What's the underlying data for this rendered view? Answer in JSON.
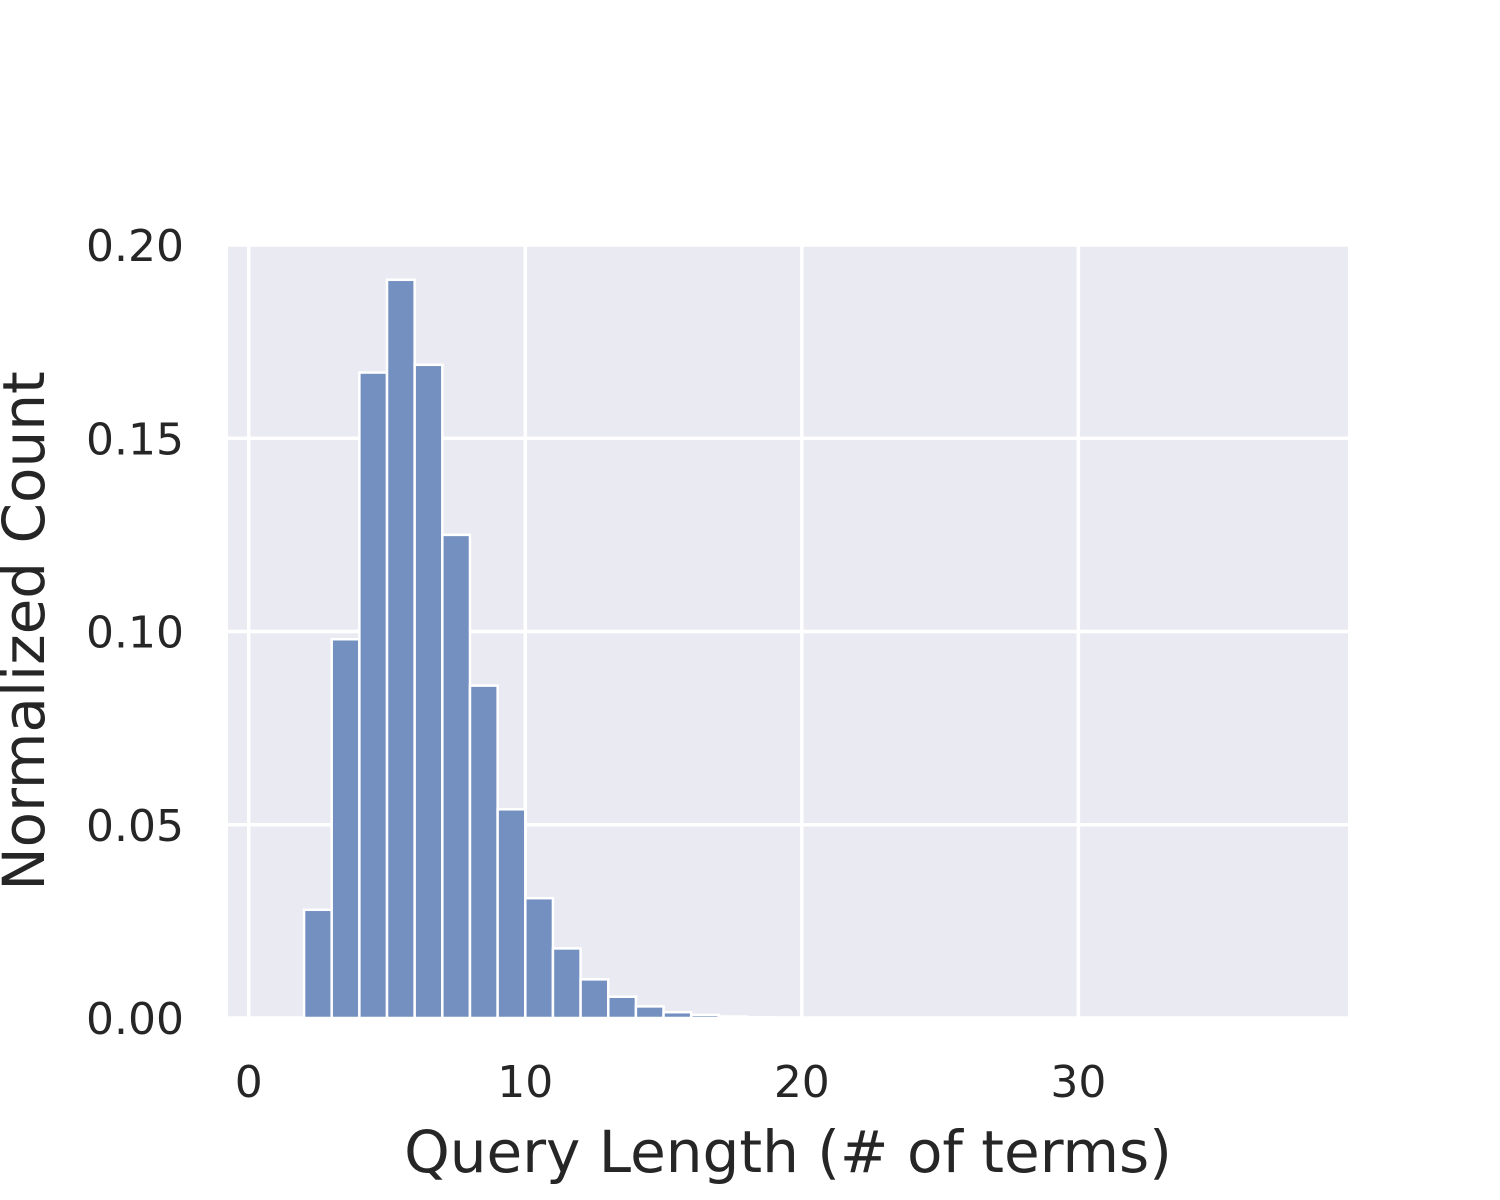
{
  "chart_data": {
    "type": "bar",
    "title": "",
    "xlabel": "Query Length (# of terms)",
    "ylabel": "Normalized Count",
    "xlim": [
      -0.75,
      39.75
    ],
    "ylim": [
      0,
      0.2
    ],
    "x_ticks": [
      0,
      10,
      20,
      30
    ],
    "y_ticks": [
      0.0,
      0.05,
      0.1,
      0.15,
      0.2
    ],
    "y_tick_labels": [
      "0.00",
      "0.05",
      "0.10",
      "0.15",
      "0.20"
    ],
    "x_tick_labels": [
      "0",
      "10",
      "20",
      "30"
    ],
    "grid": true,
    "bin_width": 1,
    "bins": [
      {
        "start": 2,
        "end": 3,
        "value": 0.028
      },
      {
        "start": 3,
        "end": 4,
        "value": 0.098
      },
      {
        "start": 4,
        "end": 5,
        "value": 0.167
      },
      {
        "start": 5,
        "end": 6,
        "value": 0.191
      },
      {
        "start": 6,
        "end": 7,
        "value": 0.169
      },
      {
        "start": 7,
        "end": 8,
        "value": 0.125
      },
      {
        "start": 8,
        "end": 9,
        "value": 0.086
      },
      {
        "start": 9,
        "end": 10,
        "value": 0.054
      },
      {
        "start": 10,
        "end": 11,
        "value": 0.031
      },
      {
        "start": 11,
        "end": 12,
        "value": 0.018
      },
      {
        "start": 12,
        "end": 13,
        "value": 0.01
      },
      {
        "start": 13,
        "end": 14,
        "value": 0.0055
      },
      {
        "start": 14,
        "end": 15,
        "value": 0.003
      },
      {
        "start": 15,
        "end": 16,
        "value": 0.0015
      },
      {
        "start": 16,
        "end": 17,
        "value": 0.0008
      },
      {
        "start": 17,
        "end": 18,
        "value": 0.0004
      },
      {
        "start": 18,
        "end": 19,
        "value": 0.0002
      },
      {
        "start": 19,
        "end": 20,
        "value": 0.0001
      }
    ],
    "colors": {
      "bar_fill": "#7490c1",
      "bar_edge": "#ffffff",
      "plot_background": "#eaeaf2",
      "grid": "#ffffff",
      "text": "#262626"
    }
  }
}
